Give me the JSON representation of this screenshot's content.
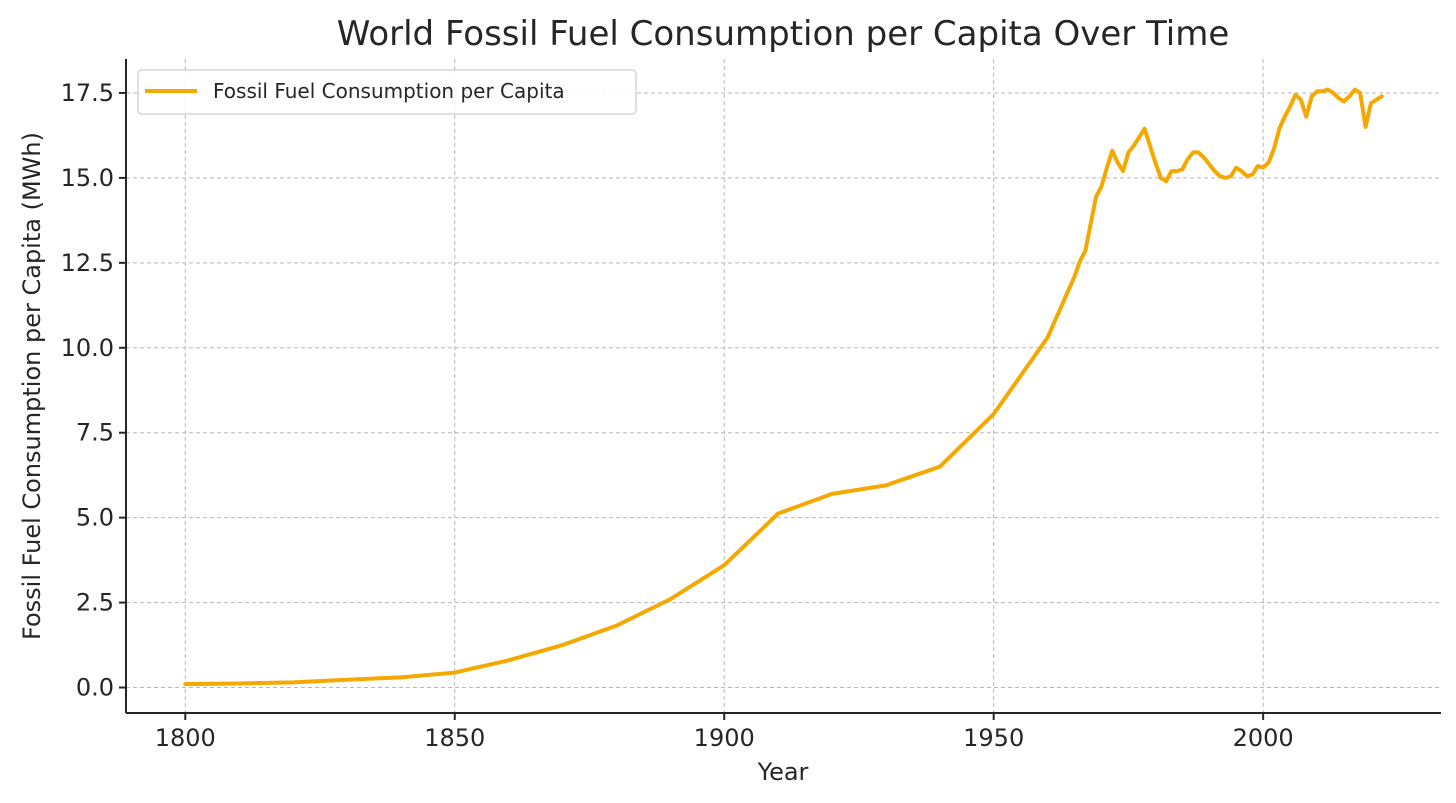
{
  "chart_data": {
    "type": "line",
    "title": "World Fossil Fuel Consumption per Capita Over Time",
    "xlabel": "Year",
    "ylabel": "Fossil Fuel Consumption per Capita (MWh)",
    "xlim": [
      1789,
      2033
    ],
    "ylim": [
      -0.75,
      18.5
    ],
    "xticks": [
      1800,
      1850,
      1900,
      1950,
      2000
    ],
    "yticks": [
      0.0,
      2.5,
      5.0,
      7.5,
      10.0,
      12.5,
      15.0,
      17.5
    ],
    "ytick_labels": [
      "0.0",
      "2.5",
      "5.0",
      "7.5",
      "10.0",
      "12.5",
      "15.0",
      "17.5"
    ],
    "xtick_labels": [
      "1800",
      "1850",
      "1900",
      "1950",
      "2000"
    ],
    "grid": true,
    "legend_position": "top-left",
    "series": [
      {
        "name": "Fossil Fuel Consumption per Capita",
        "color": "#f5a800",
        "x": [
          1800,
          1810,
          1820,
          1830,
          1840,
          1850,
          1860,
          1870,
          1880,
          1890,
          1900,
          1910,
          1920,
          1930,
          1940,
          1950,
          1960,
          1965,
          1966,
          1967,
          1968,
          1969,
          1970,
          1971,
          1972,
          1973,
          1974,
          1975,
          1976,
          1977,
          1978,
          1979,
          1980,
          1981,
          1982,
          1983,
          1984,
          1985,
          1986,
          1987,
          1988,
          1989,
          1990,
          1991,
          1992,
          1993,
          1994,
          1995,
          1996,
          1997,
          1998,
          1999,
          2000,
          2001,
          2002,
          2003,
          2004,
          2005,
          2006,
          2007,
          2008,
          2009,
          2010,
          2011,
          2012,
          2013,
          2014,
          2015,
          2016,
          2017,
          2018,
          2019,
          2020,
          2021,
          2022
        ],
        "values": [
          0.1,
          0.12,
          0.15,
          0.23,
          0.3,
          0.44,
          0.8,
          1.25,
          1.82,
          2.6,
          3.6,
          5.12,
          5.7,
          5.95,
          6.5,
          8.05,
          10.3,
          12.1,
          12.55,
          12.85,
          13.65,
          14.45,
          14.75,
          15.3,
          15.8,
          15.45,
          15.2,
          15.75,
          15.95,
          16.2,
          16.45,
          15.95,
          15.45,
          15.0,
          14.9,
          15.2,
          15.2,
          15.25,
          15.55,
          15.75,
          15.75,
          15.6,
          15.4,
          15.2,
          15.05,
          15.0,
          15.05,
          15.3,
          15.2,
          15.05,
          15.1,
          15.35,
          15.3,
          15.45,
          15.85,
          16.45,
          16.8,
          17.1,
          17.45,
          17.3,
          16.8,
          17.4,
          17.55,
          17.55,
          17.6,
          17.5,
          17.35,
          17.25,
          17.4,
          17.6,
          17.5,
          16.5,
          17.2,
          17.3,
          17.4
        ]
      }
    ]
  }
}
